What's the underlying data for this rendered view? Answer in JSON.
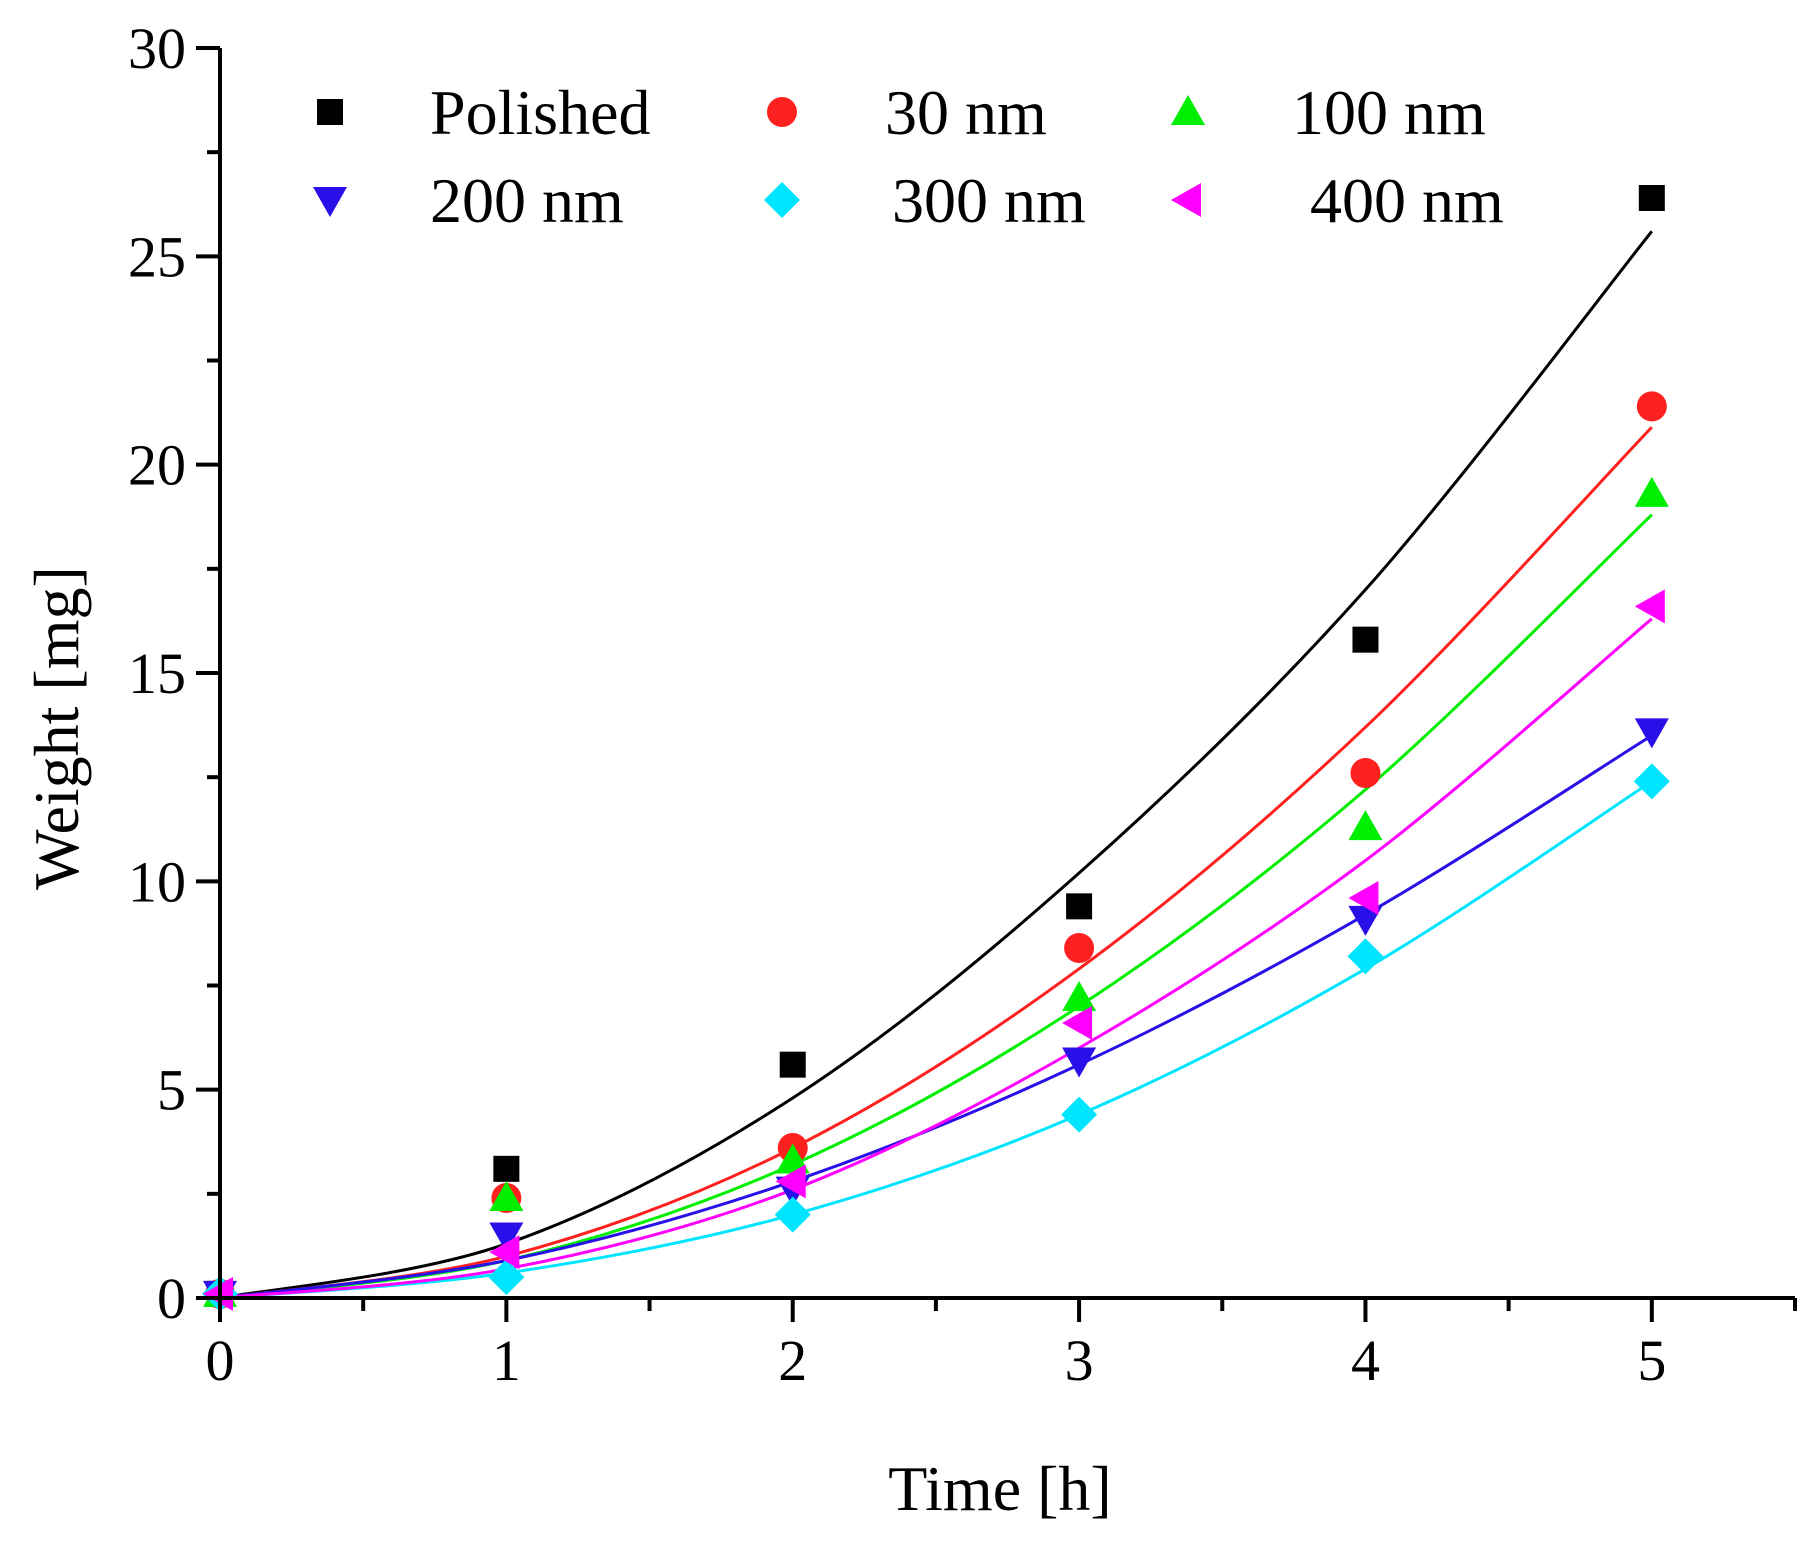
{
  "chart_data": {
    "type": "scatter",
    "title": "",
    "xlabel": "Time [h]",
    "ylabel": "Weight [mg]",
    "xlim": [
      0,
      5.5
    ],
    "ylim": [
      0,
      30
    ],
    "x_ticks": [
      0,
      1,
      2,
      3,
      4,
      5
    ],
    "x_tick_labels": [
      "0",
      "1",
      "2",
      "3",
      "4",
      "5"
    ],
    "y_ticks": [
      0,
      5,
      10,
      15,
      20,
      25,
      30
    ],
    "y_tick_labels": [
      "0",
      "5",
      "10",
      "15",
      "20",
      "25",
      "30"
    ],
    "grid": false,
    "legend_position": "top",
    "x": [
      0,
      1,
      2,
      3,
      4,
      5
    ],
    "series": [
      {
        "name": "Polished",
        "marker": "square",
        "color": "#000000",
        "values": [
          0.1,
          3.1,
          5.6,
          9.4,
          15.8,
          26.4
        ],
        "fit": [
          0,
          1.3,
          4.8,
          10.2,
          17.0,
          25.6
        ]
      },
      {
        "name": "30 nm",
        "marker": "circle",
        "color": "#ff2020",
        "values": [
          0.1,
          2.4,
          3.6,
          8.4,
          12.6,
          21.4
        ],
        "fit": [
          0,
          1.0,
          3.6,
          7.9,
          13.7,
          20.9
        ]
      },
      {
        "name": "100 nm",
        "marker": "triangle-up",
        "color": "#00ee00",
        "values": [
          0.1,
          2.4,
          3.3,
          7.2,
          11.3,
          19.3
        ],
        "fit": [
          0,
          0.9,
          3.2,
          7.0,
          12.2,
          18.8
        ]
      },
      {
        "name": "200 nm",
        "marker": "triangle-down",
        "color": "#2a10e8",
        "values": [
          0.1,
          1.5,
          2.6,
          5.7,
          9.1,
          13.6
        ],
        "fit": [
          0,
          0.9,
          2.8,
          5.6,
          9.2,
          13.5
        ]
      },
      {
        "name": "300 nm",
        "marker": "diamond",
        "color": "#00e5ff",
        "values": [
          0.1,
          0.5,
          2.0,
          4.4,
          8.2,
          12.4
        ],
        "fit": [
          0,
          0.6,
          2.0,
          4.4,
          7.9,
          12.4
        ]
      },
      {
        "name": "400 nm",
        "marker": "triangle-left",
        "color": "#ff00ff",
        "values": [
          0.1,
          1.1,
          2.8,
          6.6,
          9.6,
          16.6
        ],
        "fit": [
          0,
          0.7,
          2.6,
          6.0,
          10.5,
          16.3
        ]
      }
    ]
  }
}
